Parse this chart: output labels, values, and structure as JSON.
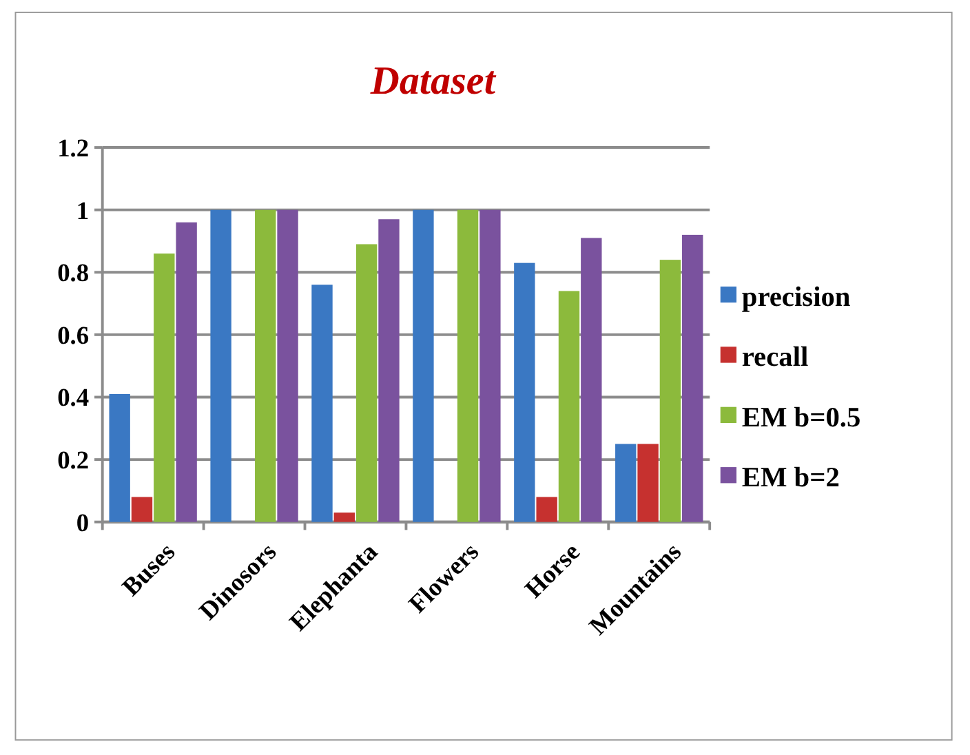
{
  "chart_data": {
    "type": "bar",
    "title": "Dataset",
    "categories": [
      "Buses",
      "Dinosors",
      "Elephanta",
      "Flowers",
      "Horse",
      "Mountains"
    ],
    "series": [
      {
        "name": "precision",
        "color": "#3a78c3",
        "values": [
          0.41,
          1,
          0.76,
          1,
          0.83,
          0.25
        ]
      },
      {
        "name": "recall",
        "color": "#c6312f",
        "values": [
          0.08,
          0,
          0.03,
          0,
          0.08,
          0.25
        ]
      },
      {
        "name": "EM b=0.5",
        "color": "#8cba3c",
        "values": [
          0.86,
          1,
          0.89,
          1,
          0.74,
          0.84
        ]
      },
      {
        "name": "EM b=2",
        "color": "#7a529e",
        "values": [
          0.96,
          1,
          0.97,
          1,
          0.91,
          0.92
        ]
      }
    ],
    "ylim": [
      0,
      1.2
    ],
    "yticks": [
      0,
      0.2,
      0.4,
      0.6,
      0.8,
      1,
      1.2
    ],
    "grid": "y",
    "legend": "right"
  }
}
